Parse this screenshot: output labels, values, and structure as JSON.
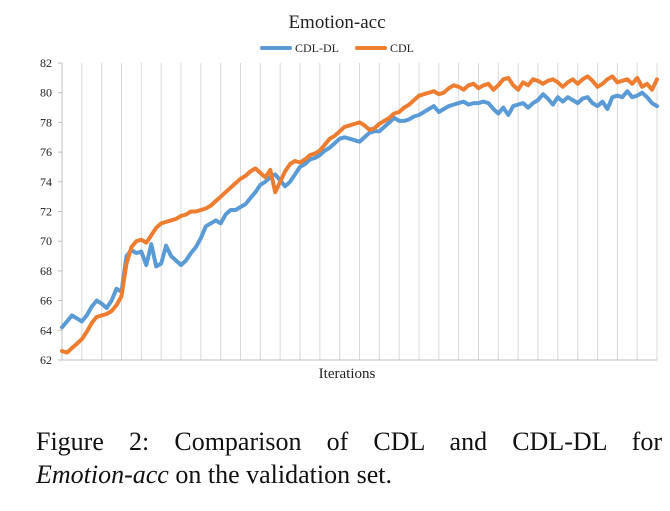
{
  "chart_data": {
    "type": "line",
    "title": "Emotion-acc",
    "xlabel": "Iterations",
    "ylabel": "",
    "ylim": [
      62,
      82
    ],
    "yticks": [
      62,
      64,
      66,
      68,
      70,
      72,
      74,
      76,
      78,
      80,
      82
    ],
    "grid": "vertical",
    "legend_position": "top-center",
    "x": [
      1,
      2,
      3,
      4,
      5,
      6,
      7,
      8,
      9,
      10,
      11,
      12,
      13,
      14,
      15,
      16,
      17,
      18,
      19,
      20,
      21,
      22,
      23,
      24,
      25,
      26,
      27,
      28,
      29,
      30,
      31,
      32,
      33,
      34,
      35,
      36,
      37,
      38,
      39,
      40,
      41,
      42,
      43,
      44,
      45,
      46,
      47,
      48,
      49,
      50,
      51,
      52,
      53,
      54,
      55,
      56,
      57,
      58,
      59,
      60,
      61,
      62,
      63,
      64,
      65,
      66,
      67,
      68,
      69,
      70,
      71,
      72,
      73,
      74,
      75,
      76,
      77,
      78,
      79,
      80,
      81,
      82,
      83,
      84,
      85,
      86,
      87,
      88,
      89,
      90,
      91,
      92,
      93,
      94,
      95,
      96,
      97,
      98,
      99,
      100,
      101,
      102,
      103,
      104,
      105,
      106,
      107,
      108,
      109,
      110,
      111,
      112,
      113,
      114,
      115,
      116,
      117,
      118,
      119,
      120,
      121
    ],
    "series": [
      {
        "name": "CDL-DL",
        "color": "#5b9bd5",
        "values": [
          64.2,
          64.6,
          65.0,
          64.8,
          64.6,
          65.0,
          65.6,
          66.0,
          65.8,
          65.5,
          66.0,
          66.8,
          66.6,
          69.0,
          69.4,
          69.2,
          69.3,
          68.4,
          69.8,
          68.3,
          68.5,
          69.7,
          69.0,
          68.7,
          68.4,
          68.7,
          69.2,
          69.6,
          70.2,
          71.0,
          71.2,
          71.4,
          71.2,
          71.8,
          72.1,
          72.1,
          72.3,
          72.5,
          72.9,
          73.3,
          73.8,
          74.0,
          74.3,
          74.5,
          74.1,
          73.7,
          74.0,
          74.5,
          75.0,
          75.2,
          75.5,
          75.6,
          75.8,
          76.1,
          76.3,
          76.6,
          76.9,
          77.0,
          76.9,
          76.8,
          76.7,
          77.0,
          77.3,
          77.4,
          77.4,
          77.7,
          78.0,
          78.3,
          78.1,
          78.1,
          78.2,
          78.4,
          78.5,
          78.7,
          78.9,
          79.1,
          78.7,
          78.9,
          79.1,
          79.2,
          79.3,
          79.4,
          79.2,
          79.3,
          79.3,
          79.4,
          79.3,
          78.9,
          78.6,
          79.0,
          78.5,
          79.1,
          79.2,
          79.3,
          79.0,
          79.3,
          79.5,
          79.9,
          79.6,
          79.2,
          79.7,
          79.4,
          79.7,
          79.5,
          79.3,
          79.6,
          79.7,
          79.3,
          79.1,
          79.4,
          78.9,
          79.7,
          79.8,
          79.7,
          80.1,
          79.7,
          79.8,
          80.0,
          79.7,
          79.3,
          79.1
        ]
      },
      {
        "name": "CDL",
        "color": "#ed7d31",
        "values": [
          62.6,
          62.5,
          62.8,
          63.1,
          63.4,
          63.9,
          64.5,
          64.9,
          65.0,
          65.1,
          65.3,
          65.7,
          66.3,
          68.5,
          69.6,
          70.0,
          70.1,
          69.9,
          70.4,
          70.9,
          71.2,
          71.3,
          71.4,
          71.5,
          71.7,
          71.8,
          72.0,
          72.0,
          72.1,
          72.2,
          72.4,
          72.7,
          73.0,
          73.3,
          73.6,
          73.9,
          74.2,
          74.4,
          74.7,
          74.9,
          74.6,
          74.3,
          74.8,
          73.3,
          74.0,
          74.7,
          75.2,
          75.4,
          75.3,
          75.5,
          75.8,
          75.9,
          76.1,
          76.5,
          76.9,
          77.1,
          77.4,
          77.7,
          77.8,
          77.9,
          78.0,
          77.8,
          77.5,
          77.6,
          77.9,
          78.1,
          78.3,
          78.6,
          78.7,
          79.0,
          79.2,
          79.5,
          79.8,
          79.9,
          80.0,
          80.1,
          79.9,
          80.0,
          80.3,
          80.5,
          80.4,
          80.2,
          80.5,
          80.6,
          80.3,
          80.5,
          80.6,
          80.2,
          80.5,
          80.9,
          81.0,
          80.5,
          80.2,
          80.7,
          80.5,
          80.9,
          80.8,
          80.6,
          80.8,
          80.9,
          80.7,
          80.4,
          80.7,
          80.9,
          80.6,
          80.9,
          81.1,
          80.8,
          80.4,
          80.6,
          80.9,
          81.1,
          80.7,
          80.8,
          80.9,
          80.6,
          81.0,
          80.4,
          80.6,
          80.2,
          80.9
        ]
      }
    ]
  },
  "caption": {
    "line1": "Figure 2:  Comparison of CDL and CDL-DL for",
    "line2_italic": "Emotion-acc",
    "line2_rest": " on the validation set."
  }
}
